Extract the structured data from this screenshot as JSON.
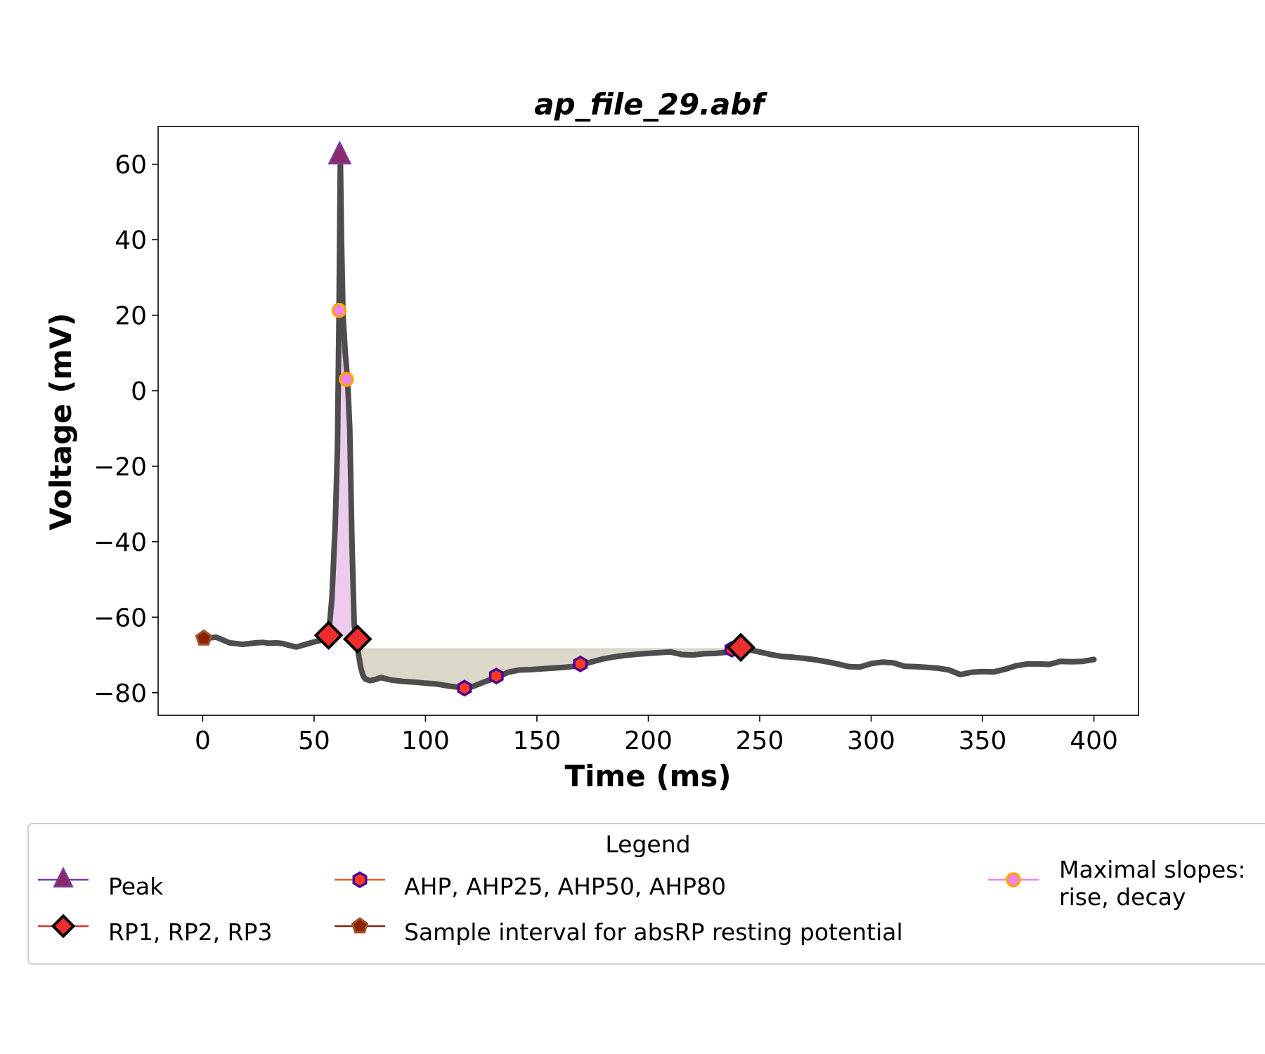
{
  "chart_data": {
    "type": "line",
    "title": "ap_file_29.abf",
    "xlabel": "Time (ms)",
    "ylabel": "Voltage (mV)",
    "xlim": [
      -20,
      420
    ],
    "ylim": [
      -86,
      70
    ],
    "xticks": [
      0,
      50,
      100,
      150,
      200,
      250,
      300,
      350,
      400
    ],
    "yticks": [
      -80,
      -60,
      -40,
      -20,
      0,
      20,
      40,
      60
    ],
    "xtick_labels": [
      "0",
      "50",
      "100",
      "150",
      "200",
      "250",
      "300",
      "350",
      "400"
    ],
    "ytick_labels": [
      "−80",
      "−60",
      "−40",
      "−20",
      "0",
      "20",
      "40",
      "60"
    ],
    "grid": false,
    "trace": {
      "color": "#4d4d4d",
      "x": [
        0,
        3,
        6,
        9,
        12,
        15,
        18,
        21,
        24,
        27,
        30,
        33,
        36,
        39,
        42,
        45,
        48,
        51,
        54,
        56.5,
        58,
        59.5,
        60.5,
        61.2,
        61.8,
        62.3,
        63,
        64,
        65,
        66,
        67,
        68,
        69,
        70,
        71,
        72,
        73,
        75,
        77,
        80,
        85,
        90,
        95,
        100,
        105,
        110,
        115,
        118,
        122,
        127,
        132,
        137,
        142,
        147,
        152,
        157,
        162,
        167,
        170,
        175,
        180,
        185,
        190,
        195,
        200,
        205,
        210,
        215,
        220,
        225,
        230,
        235,
        238,
        241,
        245,
        250,
        255,
        260,
        265,
        270,
        275,
        280,
        285,
        290,
        295,
        300,
        305,
        310,
        315,
        320,
        325,
        330,
        335,
        340,
        345,
        350,
        355,
        360,
        365,
        370,
        375,
        380,
        385,
        390,
        395,
        400
      ],
      "y": [
        -65.8,
        -65.5,
        -65.3,
        -66,
        -66.8,
        -67,
        -67.2,
        -67,
        -66.8,
        -66.7,
        -66.9,
        -66.8,
        -67,
        -67.5,
        -67.9,
        -67.4,
        -66.9,
        -66.4,
        -66,
        -64.8,
        -55,
        -35,
        -15,
        20,
        62,
        40,
        20,
        10,
        3,
        -10,
        -40,
        -62,
        -65.5,
        -70,
        -73.5,
        -75.5,
        -76.4,
        -76.8,
        -76.6,
        -76,
        -76.7,
        -77,
        -77.2,
        -77.5,
        -77.7,
        -78.2,
        -78.6,
        -79,
        -78.2,
        -77,
        -76,
        -74.6,
        -74,
        -73.9,
        -73.7,
        -73.5,
        -73.3,
        -73,
        -72.6,
        -71.8,
        -71,
        -70.5,
        -70.1,
        -69.8,
        -69.6,
        -69.4,
        -69.2,
        -69.9,
        -70,
        -69.7,
        -69.6,
        -69.3,
        -69.2,
        -68.5,
        -68.6,
        -69.2,
        -69.9,
        -70.4,
        -70.6,
        -70.9,
        -71.3,
        -71.8,
        -72.4,
        -73.1,
        -73.2,
        -72.3,
        -71.9,
        -72.1,
        -73,
        -73.1,
        -73.3,
        -73.5,
        -74,
        -75.2,
        -74.6,
        -74.4,
        -74.5,
        -73.8,
        -72.9,
        -72.4,
        -72.4,
        -72.5,
        -71.7,
        -71.8,
        -71.7,
        -71.2
      ]
    },
    "markers": {
      "peak": [
        {
          "x": 61.5,
          "y": 62.3
        }
      ],
      "rp": [
        {
          "x": 56.5,
          "y": -64.8
        },
        {
          "x": 69.5,
          "y": -65.8
        },
        {
          "x": 241.5,
          "y": -68
        }
      ],
      "ahp": [
        {
          "x": 117.5,
          "y": -78.8
        },
        {
          "x": 131.8,
          "y": -75.6
        },
        {
          "x": 169.5,
          "y": -72.4
        },
        {
          "x": 237.5,
          "y": -68.5
        }
      ],
      "absrp": [
        {
          "x": 0.5,
          "y": -65.6
        }
      ],
      "slopes": [
        {
          "x": 61.2,
          "y": 21.3
        },
        {
          "x": 64.5,
          "y": 3
        }
      ]
    },
    "shaded_regions": [
      {
        "type": "ap",
        "x_from": 56.5,
        "x_to": 69.5,
        "color": "#dda0dd"
      },
      {
        "type": "ahp",
        "x_from": 69.5,
        "x_to": 237.5,
        "baseline": -68.2,
        "color": "#c8c3ad"
      }
    ],
    "colors": {
      "peak_fill": "#8b2a6b",
      "peak_edge": "#7a3b9a",
      "rp_fill": "#ee2e2e",
      "rp_edge": "#000000",
      "ahp_fill": "#ff3b1f",
      "ahp_edge": "#4b0099",
      "absrp_fill": "#8b2500",
      "absrp_edge": "#a0522d",
      "slope_fill": "#ee82ee",
      "slope_edge": "#ffa500"
    },
    "legend": {
      "title": "Legend",
      "placement": "bottom",
      "items": [
        {
          "key": "peak",
          "label": "Peak"
        },
        {
          "key": "rp",
          "label": "RP1, RP2, RP3"
        },
        {
          "key": "ahp",
          "label": "AHP, AHP25, AHP50, AHP80"
        },
        {
          "key": "absrp",
          "label": "Sample interval for absRP resting potential"
        },
        {
          "key": "slopes",
          "label": "Maximal slopes:",
          "label2": " rise, decay"
        }
      ]
    }
  }
}
